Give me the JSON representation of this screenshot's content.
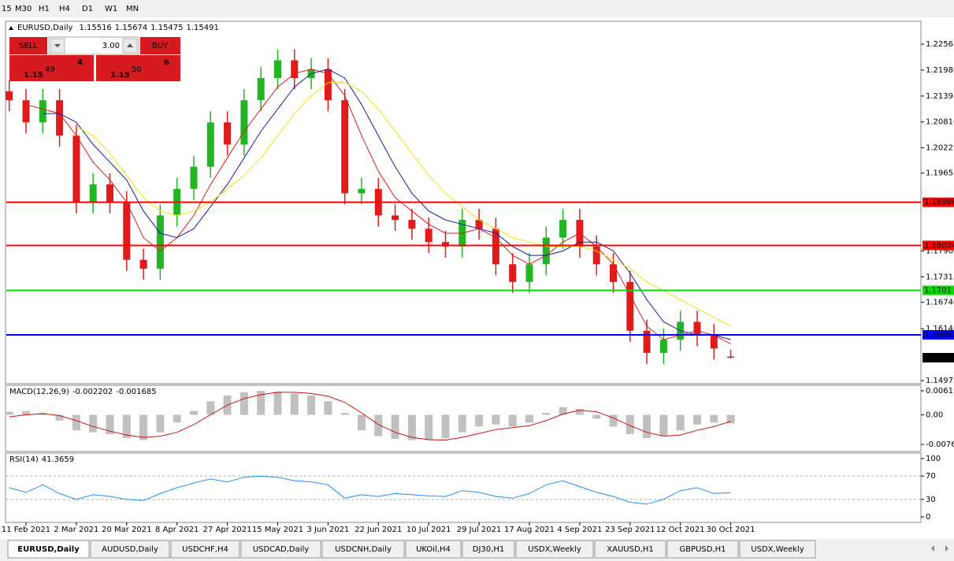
{
  "toolbar": [
    "15",
    "M30",
    "H1",
    "H4",
    "D1",
    "W1",
    "MN"
  ],
  "trade_panel": {
    "sell": "SELL",
    "lots": "3.00",
    "buy": "BUY",
    "sell_price": {
      "prefix": "1.15",
      "big": "49",
      "pip": "4"
    },
    "buy_price": {
      "prefix": "1.15",
      "big": "50",
      "pip": "6"
    }
  },
  "tabs": [
    "EURUSD,Daily",
    "AUDUSD,Daily",
    "USDCHF,H4",
    "USDCAD,Daily",
    "USDCNH,Daily",
    "UKOil,H4",
    "DJ30,H1",
    "USDX,Weekly",
    "XAUUSD,H1",
    "GBPUSD,H1",
    "USDX,Weekly"
  ],
  "chart_data": [
    {
      "type": "candlestick",
      "title": "EURUSD,Daily",
      "title_values": [
        1.15516,
        1.15674,
        1.15475,
        1.15491
      ],
      "categories": [
        null,
        "11 Feb 2021",
        null,
        null,
        "2 Mar 2021",
        null,
        null,
        "20 Mar 2021",
        null,
        null,
        "8 Apr 2021",
        null,
        null,
        "27 Apr 2021",
        null,
        null,
        "15 May 2021",
        null,
        null,
        "3 Jun 2021",
        null,
        null,
        "22 Jun 2021",
        null,
        null,
        "10 Jul 2021",
        null,
        null,
        "29 Jul 2021",
        null,
        null,
        "17 Aug 2021",
        null,
        null,
        "4 Sep 2021",
        null,
        null,
        "23 Sep 2021",
        null,
        null,
        "12 Oct 2021",
        null,
        null,
        "30 Oct 2021"
      ],
      "open": [
        1.215,
        1.213,
        1.208,
        1.213,
        1.205,
        1.19,
        1.194,
        1.19,
        1.177,
        1.175,
        1.187,
        1.193,
        1.198,
        1.208,
        1.203,
        1.213,
        1.218,
        1.222,
        1.218,
        1.22,
        1.213,
        1.192,
        1.193,
        1.187,
        1.186,
        1.184,
        1.181,
        1.18,
        1.186,
        1.184,
        1.176,
        1.172,
        1.176,
        1.182,
        1.186,
        1.18,
        1.176,
        1.172,
        1.161,
        1.156,
        1.159,
        1.163,
        1.16,
        1.15516
      ],
      "high": [
        1.2175,
        1.2155,
        1.2155,
        1.2155,
        1.2075,
        1.1965,
        1.1965,
        1.1925,
        1.1795,
        1.1895,
        1.1955,
        1.2005,
        1.2105,
        1.2105,
        1.2155,
        1.2205,
        1.2245,
        1.2245,
        1.2225,
        1.2225,
        1.2155,
        1.1955,
        1.1955,
        1.1895,
        1.1885,
        1.1865,
        1.1835,
        1.1885,
        1.1885,
        1.1865,
        1.1785,
        1.1785,
        1.1845,
        1.1885,
        1.1885,
        1.1825,
        1.1785,
        1.1745,
        1.1635,
        1.1615,
        1.1655,
        1.1655,
        1.1625,
        1.15674
      ],
      "low": [
        1.2105,
        1.2055,
        1.2055,
        1.2025,
        1.1875,
        1.1875,
        1.1875,
        1.1745,
        1.1725,
        1.1725,
        1.1845,
        1.1905,
        1.1955,
        1.2005,
        1.2005,
        1.2105,
        1.2155,
        1.2155,
        1.2155,
        1.2105,
        1.1895,
        1.1895,
        1.1845,
        1.1835,
        1.1815,
        1.1785,
        1.1775,
        1.1775,
        1.1815,
        1.1735,
        1.1695,
        1.1695,
        1.1735,
        1.1795,
        1.1775,
        1.1735,
        1.1695,
        1.1585,
        1.1535,
        1.1535,
        1.1565,
        1.1575,
        1.1545,
        1.15475
      ],
      "close": [
        1.213,
        1.208,
        1.213,
        1.205,
        1.19,
        1.194,
        1.19,
        1.177,
        1.175,
        1.187,
        1.193,
        1.198,
        1.208,
        1.203,
        1.213,
        1.218,
        1.222,
        1.218,
        1.22,
        1.213,
        1.192,
        1.193,
        1.187,
        1.186,
        1.184,
        1.181,
        1.18,
        1.186,
        1.184,
        1.176,
        1.172,
        1.176,
        1.182,
        1.186,
        1.18,
        1.176,
        1.172,
        1.161,
        1.156,
        1.159,
        1.163,
        1.16,
        1.157,
        1.15491
      ],
      "up_color": "#22b422",
      "down_color": "#e01b1b",
      "series": [
        {
          "color": "#e01b1b",
          "values": [
            null,
            1.212,
            1.211,
            1.21,
            1.205,
            1.199,
            1.195,
            1.19,
            1.182,
            1.179,
            1.182,
            1.187,
            1.194,
            1.2,
            1.206,
            1.211,
            1.216,
            1.219,
            1.22,
            1.219,
            1.214,
            1.205,
            1.197,
            1.191,
            1.188,
            1.185,
            1.183,
            1.183,
            1.184,
            1.182,
            1.178,
            1.176,
            1.178,
            1.181,
            1.183,
            1.18,
            1.176,
            1.169,
            1.162,
            1.159,
            1.16,
            1.161,
            1.16,
            1.158
          ]
        },
        {
          "color": "#1a1aa6",
          "values": [
            null,
            null,
            1.21,
            1.21,
            1.208,
            1.203,
            1.199,
            1.195,
            1.188,
            1.183,
            1.182,
            1.184,
            1.189,
            1.194,
            1.2,
            1.206,
            1.211,
            1.216,
            1.219,
            1.22,
            1.218,
            1.212,
            1.205,
            1.198,
            1.192,
            1.188,
            1.186,
            1.185,
            1.184,
            1.183,
            1.18,
            1.178,
            1.178,
            1.179,
            1.181,
            1.181,
            1.179,
            1.174,
            1.168,
            1.163,
            1.161,
            1.16,
            1.16,
            1.159
          ]
        },
        {
          "color": "#f2e200",
          "values": [
            null,
            null,
            null,
            null,
            1.207,
            1.205,
            1.201,
            1.196,
            1.191,
            1.188,
            1.187,
            1.188,
            1.19,
            1.193,
            1.196,
            1.2,
            1.205,
            1.21,
            1.214,
            1.217,
            1.217,
            1.215,
            1.211,
            1.206,
            1.201,
            1.196,
            1.192,
            1.189,
            1.186,
            1.184,
            1.182,
            1.181,
            1.18,
            1.18,
            1.18,
            1.179,
            1.177,
            1.175,
            1.172,
            1.17,
            1.168,
            1.166,
            1.164,
            1.162
          ]
        }
      ],
      "levels": [
        {
          "value": 1.18998,
          "color": "#ff0000"
        },
        {
          "value": 1.18024,
          "color": "#ff0000"
        },
        {
          "value": 1.1701,
          "color": "#00e000"
        },
        {
          "value": 1.16007,
          "color": "#0000ff"
        }
      ],
      "last_price": 1.15491,
      "ylim": [
        1.23063,
        1.14904
      ],
      "yticks": [
        1.22565,
        {
          "value": 1.2198,
          "label": "1.21980"
        },
        1.21395,
        {
          "value": 1.2081,
          "label": "1.20810"
        },
        1.20225,
        1.19655,
        {
          "value": 1.179,
          "label": "1.17900"
        },
        1.17315,
        {
          "value": 1.1674,
          "label": "1.16740"
        },
        1.16145,
        1.14975
      ]
    },
    {
      "type": "macd",
      "title": "MACD(12,26,9)",
      "title_values": [
        -0.002202,
        -0.001685
      ],
      "values": [
        0.0008,
        0.001,
        0.0005,
        -0.0015,
        -0.004,
        -0.0045,
        -0.005,
        -0.006,
        -0.0065,
        -0.0045,
        -0.002,
        0.001,
        0.0035,
        0.005,
        0.0058,
        0.0062,
        0.006,
        0.0055,
        0.005,
        0.0035,
        0.0005,
        -0.004,
        -0.0055,
        -0.0062,
        -0.0065,
        -0.0065,
        -0.006,
        -0.0045,
        -0.003,
        -0.0025,
        -0.003,
        -0.002,
        0.0005,
        0.002,
        0.0015,
        -0.001,
        -0.003,
        -0.005,
        -0.006,
        -0.0055,
        -0.004,
        -0.0025,
        -0.002,
        -0.0022
      ],
      "color": "#c0c0c0",
      "series": [
        {
          "color": "#d01010",
          "values": [
            -0.0005,
            0.0,
            0.0003,
            -0.0002,
            -0.0015,
            -0.003,
            -0.0042,
            -0.0052,
            -0.0058,
            -0.0055,
            -0.0045,
            -0.0025,
            0.0,
            0.0025,
            0.0042,
            0.0052,
            0.0058,
            0.0058,
            0.0055,
            0.0048,
            0.0032,
            0.0005,
            -0.0025,
            -0.0045,
            -0.0058,
            -0.0064,
            -0.0065,
            -0.0058,
            -0.0048,
            -0.0038,
            -0.0033,
            -0.0028,
            -0.0015,
            0.0002,
            0.0012,
            0.0008,
            -0.0008,
            -0.0028,
            -0.0045,
            -0.0055,
            -0.0052,
            -0.004,
            -0.003,
            -0.0017
          ]
        }
      ],
      "ylim": [
        0.00741,
        -0.00924
      ],
      "yticks": [
        0.006193,
        {
          "value": 0,
          "label": "0.00"
        },
        -0.00762
      ]
    },
    {
      "type": "rsi",
      "title": "RSI(14)",
      "title_values": [
        41.3659
      ],
      "series": [
        {
          "color": "#1e90ff",
          "values": [
            50,
            42,
            55,
            40,
            30,
            38,
            35,
            30,
            28,
            40,
            50,
            58,
            65,
            60,
            68,
            70,
            68,
            62,
            60,
            55,
            32,
            38,
            35,
            40,
            38,
            36,
            35,
            45,
            42,
            35,
            32,
            40,
            55,
            62,
            52,
            42,
            35,
            25,
            22,
            30,
            45,
            50,
            40,
            41.3659
          ]
        }
      ],
      "dashed_levels": [
        70,
        30
      ],
      "ylim": [
        108,
        -8
      ],
      "yticks": [
        100,
        70,
        30,
        0
      ]
    }
  ]
}
